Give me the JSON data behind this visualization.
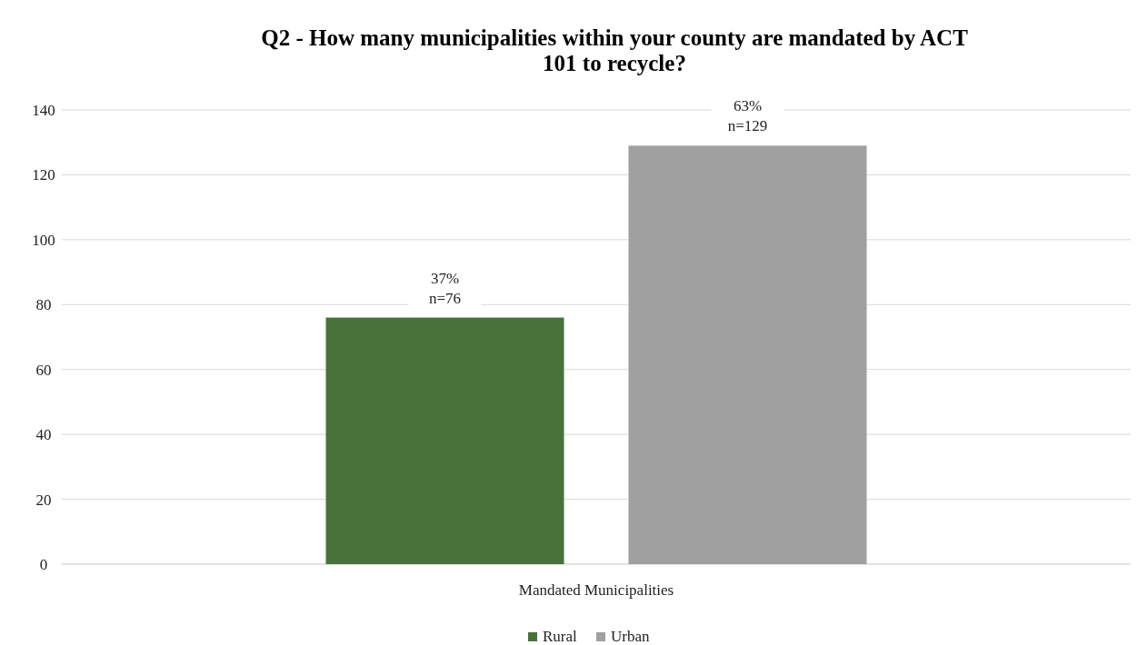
{
  "chart_data": {
    "type": "bar",
    "title": "Q2 - How many municipalities within your county are mandated by ACT 101 to recycle?",
    "categories": [
      "Mandated Municipalities"
    ],
    "series": [
      {
        "name": "Rural",
        "color": "#47733a",
        "values": [
          76
        ],
        "value_labels": [
          "37%\nn=76"
        ]
      },
      {
        "name": "Urban",
        "color": "#a0a0a0",
        "values": [
          129
        ],
        "value_labels": [
          "63%\nn=129"
        ]
      }
    ],
    "ylim": [
      0,
      140
    ],
    "yticks": [
      0,
      20,
      40,
      60,
      80,
      100,
      120,
      140
    ],
    "grid": "y",
    "legend": "bottom"
  }
}
